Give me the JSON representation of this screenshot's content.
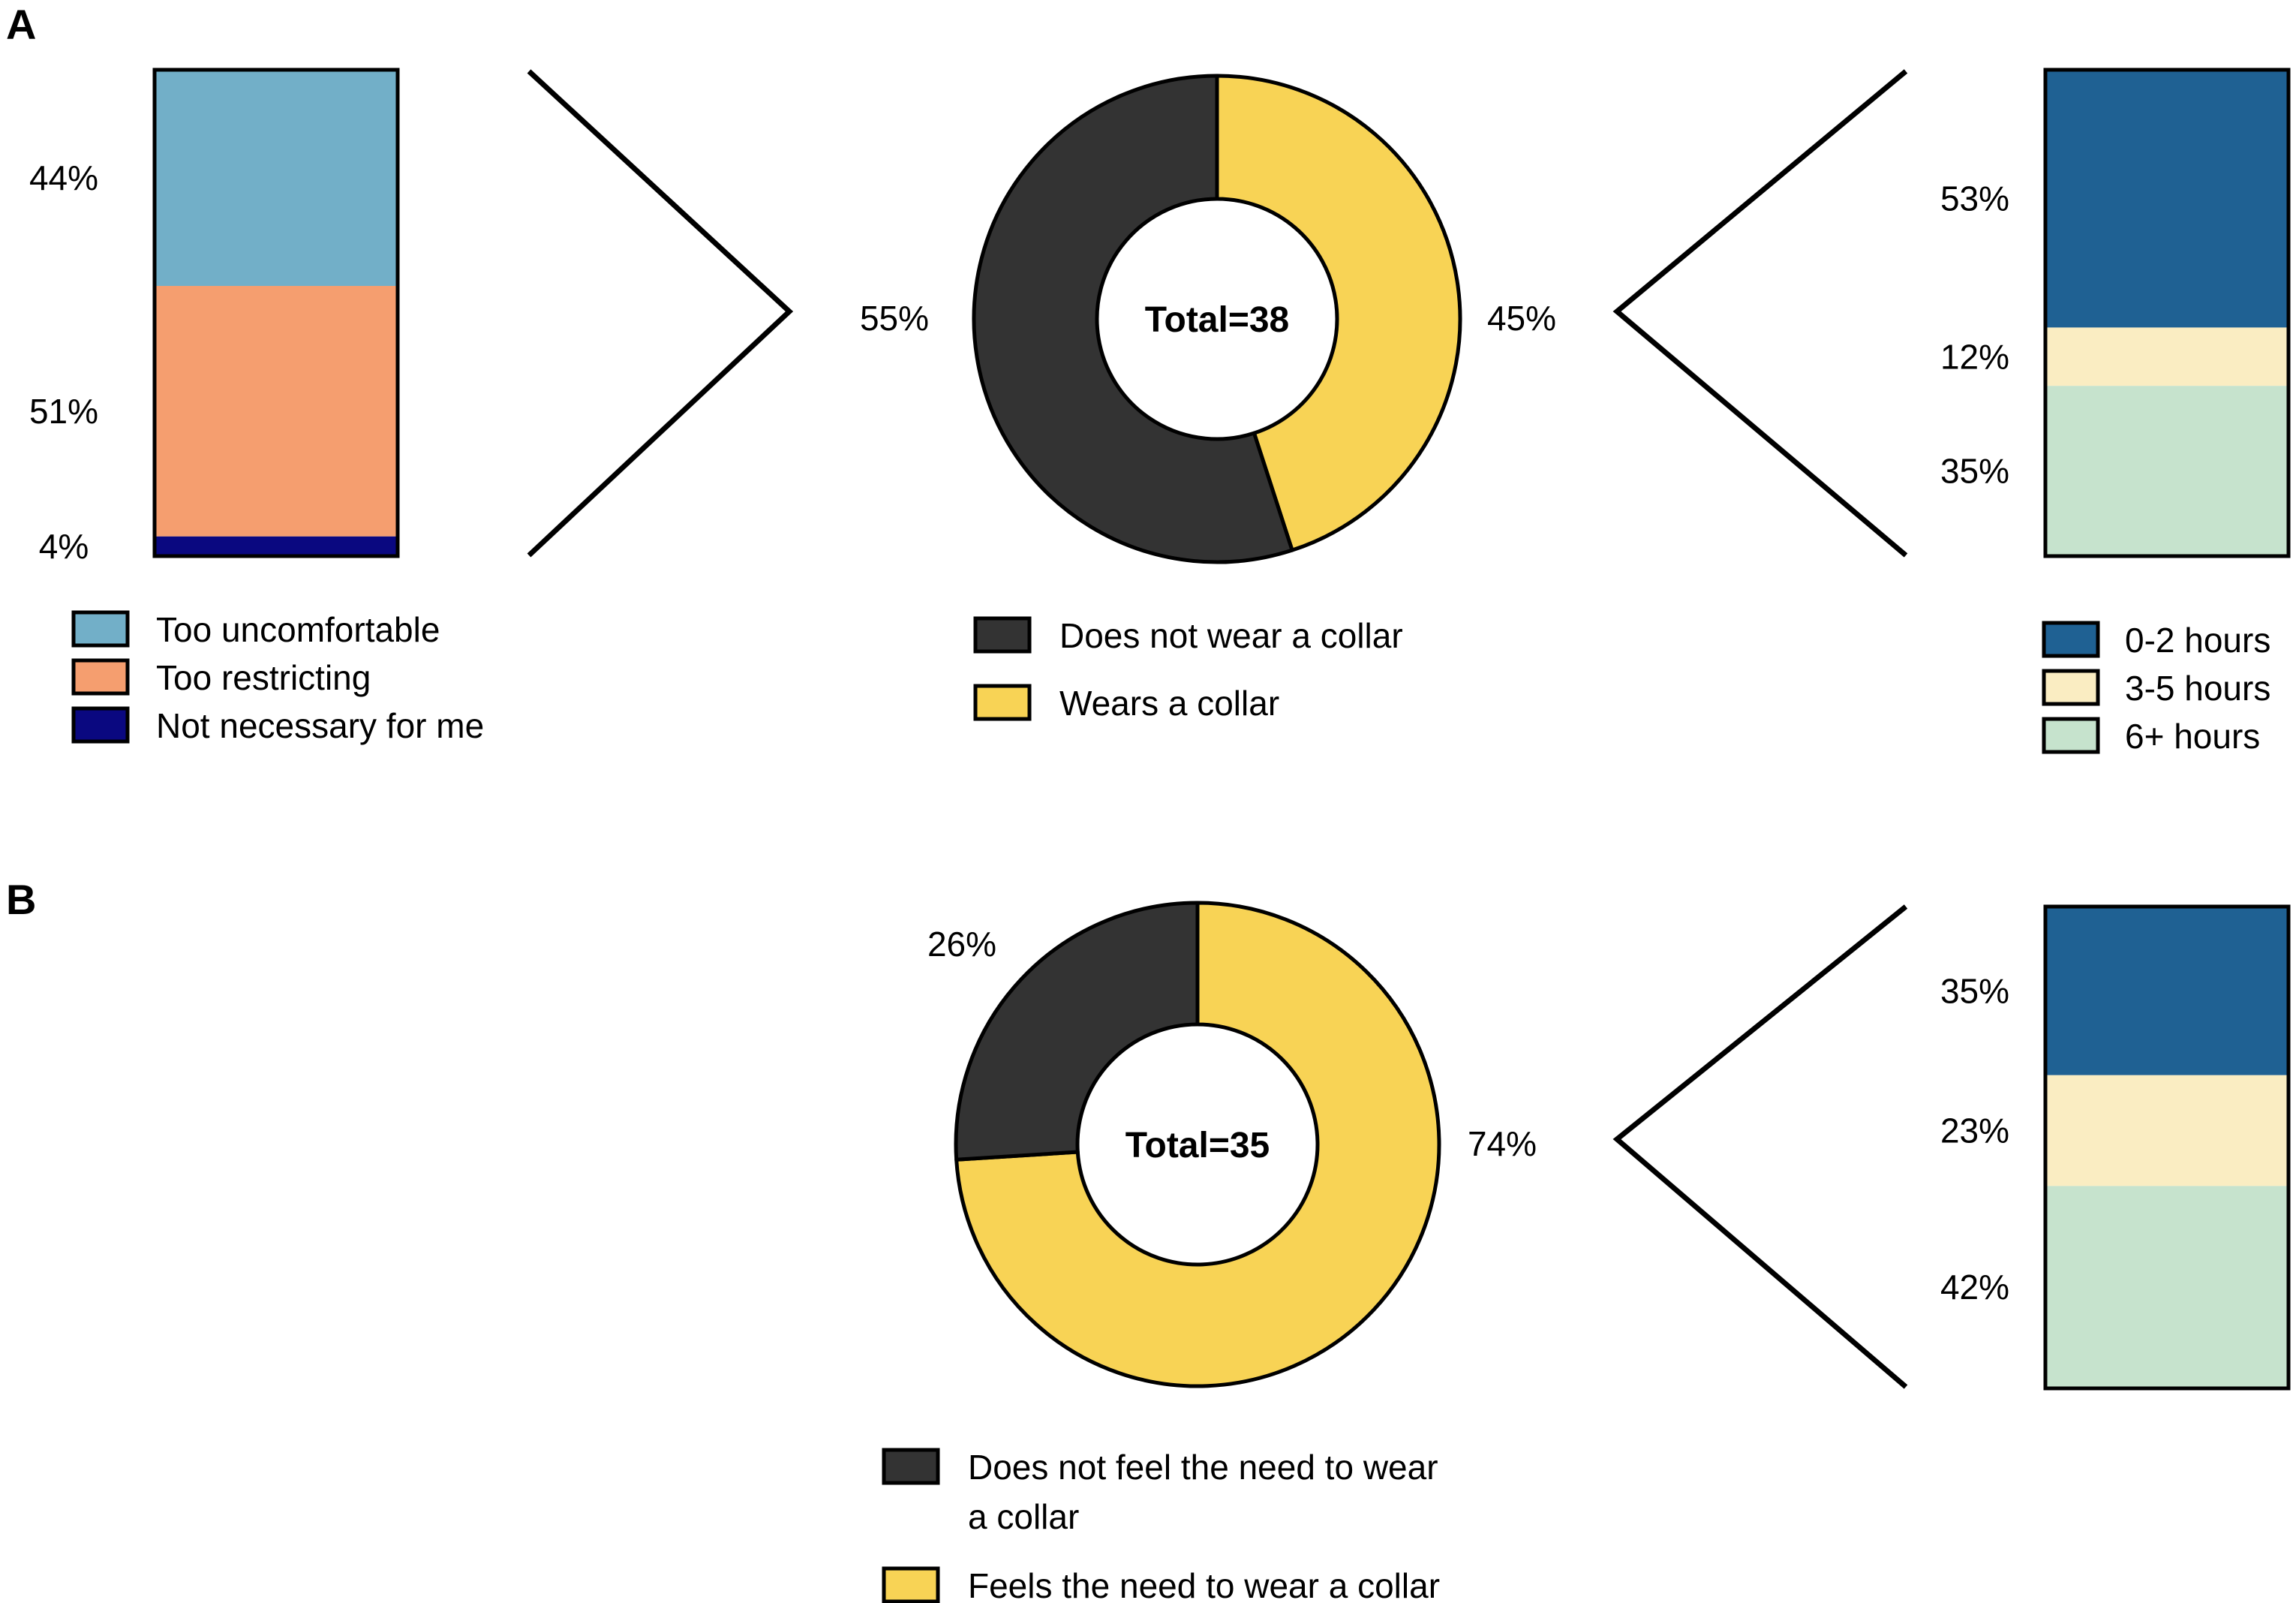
{
  "panels": {
    "a": {
      "label": "A"
    },
    "b": {
      "label": "B"
    }
  },
  "chart_data": [
    {
      "id": "a-reasons",
      "type": "bar",
      "stacked": true,
      "categories": [
        "Too uncomfortable",
        "Too restricting",
        "Not necessary for me"
      ],
      "values": [
        44,
        51,
        4
      ],
      "value_labels": [
        "44%",
        "51%",
        "4%"
      ],
      "colors": [
        "#72afc8",
        "#f59e6f",
        "#0a0880"
      ],
      "legend": [
        "Too uncomfortable",
        "Too restricting",
        "Not necessary for me"
      ],
      "legend_position": "bottom"
    },
    {
      "id": "a-donut",
      "type": "pie",
      "donut": true,
      "center_label": "Total=38",
      "categories": [
        "Wears a collar",
        "Does not wear a collar"
      ],
      "values": [
        45,
        55
      ],
      "value_labels": [
        "45%",
        "55%"
      ],
      "colors": [
        "#f8d355",
        "#333333"
      ],
      "legend": [
        "Does not wear a collar",
        "Wears a collar"
      ],
      "legend_position": "bottom"
    },
    {
      "id": "a-hours",
      "type": "bar",
      "stacked": true,
      "categories": [
        "0-2 hours",
        "3-5 hours",
        "6+ hours"
      ],
      "values": [
        53,
        12,
        35
      ],
      "value_labels": [
        "53%",
        "12%",
        "35%"
      ],
      "colors": [
        "#1f6193",
        "#faedc2",
        "#c6e3cd"
      ],
      "legend": [
        "0-2 hours",
        "3-5 hours",
        "6+ hours"
      ],
      "legend_position": "bottom"
    },
    {
      "id": "b-donut",
      "type": "pie",
      "donut": true,
      "center_label": "Total=35",
      "categories": [
        "Feels the need to wear a collar",
        "Does not feel the need to wear a collar"
      ],
      "values": [
        74,
        26
      ],
      "value_labels": [
        "74%",
        "26%"
      ],
      "colors": [
        "#f8d355",
        "#333333"
      ],
      "legend": [
        "Does not feel the need to wear a collar",
        "Feels the need to wear a collar"
      ],
      "legend_lines": [
        [
          "Does not feel the need to wear",
          "a collar"
        ],
        [
          "Feels the need to wear a collar"
        ]
      ],
      "legend_position": "bottom"
    },
    {
      "id": "b-hours",
      "type": "bar",
      "stacked": true,
      "categories": [
        "0-2 hours",
        "3-5 hours",
        "6+ hours"
      ],
      "values": [
        35,
        23,
        42
      ],
      "value_labels": [
        "35%",
        "23%",
        "42%"
      ],
      "colors": [
        "#1f6193",
        "#faedc2",
        "#c6e3cd"
      ]
    }
  ]
}
